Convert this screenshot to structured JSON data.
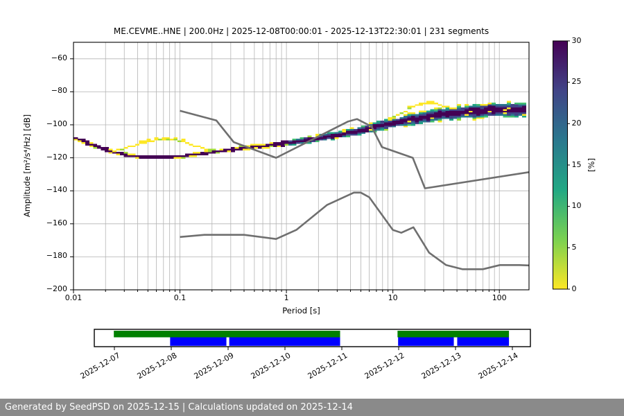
{
  "header": {
    "title": "ME.CEVME..HNE | 200.0Hz | 2025-12-08T00:00:01 - 2025-12-13T22:30:01 | 231 segments"
  },
  "footer": {
    "text": "Generated by SeedPSD on 2025-12-15 | Calculations updated on 2025-12-14"
  },
  "chart_data": {
    "type": "heatmap",
    "title": "ME.CEVME..HNE | 200.0Hz | 2025-12-08T00:00:01 - 2025-12-13T22:30:01 | 231 segments",
    "xlabel": "Period [s]",
    "ylabel": "Amplitude [m²/s⁴/Hz] [dB]",
    "xscale": "log",
    "xlim": [
      0.01,
      190
    ],
    "ylim": [
      -200,
      -50
    ],
    "grid": "x-major-minor, y-major",
    "x_ticks": {
      "values": [
        0.01,
        0.1,
        1,
        10,
        100
      ],
      "labels": [
        "0.01",
        "0.1",
        "1",
        "10",
        "100"
      ]
    },
    "y_ticks": {
      "values": [
        -60,
        -80,
        -100,
        -120,
        -140,
        -160,
        -180,
        -200
      ],
      "labels": [
        "−60",
        "−80",
        "−100",
        "−120",
        "−140",
        "−160",
        "−180",
        "−200"
      ]
    },
    "colorbar": {
      "label": "[%]",
      "min": 0,
      "max": 30,
      "tick_values": [
        0,
        5,
        10,
        15,
        20,
        25,
        30
      ],
      "tick_labels": [
        "0",
        "5",
        "10",
        "15",
        "20",
        "25",
        "30"
      ],
      "colormap": "viridis_r",
      "stops_bottom_to_top": [
        "#fde725",
        "#7ad151",
        "#22a884",
        "#2a788e",
        "#414487",
        "#440154"
      ]
    },
    "psd_distribution": {
      "comment": "probability histogram band: mode amplitude (dB) vs period (s), halfwidth = visible spread in dB",
      "mode_db": [
        [
          0.01,
          -107.8
        ],
        [
          0.016,
          -112.8
        ],
        [
          0.025,
          -117.3
        ],
        [
          0.04,
          -119.4
        ],
        [
          0.07,
          -119.6
        ],
        [
          0.1,
          -119.2
        ],
        [
          0.15,
          -117.8
        ],
        [
          0.22,
          -116.2
        ],
        [
          0.45,
          -113.6
        ],
        [
          1,
          -111.2
        ],
        [
          2.2,
          -107.8
        ],
        [
          4.5,
          -104.2
        ],
        [
          8,
          -100.2
        ],
        [
          15,
          -96.8
        ],
        [
          30,
          -93.6
        ],
        [
          60,
          -91.8
        ],
        [
          100,
          -91.0
        ],
        [
          180,
          -90.6
        ]
      ],
      "halfwidth_db": [
        [
          0.01,
          1.1
        ],
        [
          0.2,
          1.1
        ],
        [
          0.7,
          1.5
        ],
        [
          2,
          2.0
        ],
        [
          6,
          2.6
        ],
        [
          15,
          3.3
        ],
        [
          40,
          4.0
        ],
        [
          180,
          4.3
        ]
      ],
      "secondary_ridges_db": [
        [
          [
            0.021,
            -117.3
          ],
          [
            0.03,
            -114.2
          ],
          [
            0.045,
            -111.0
          ],
          [
            0.065,
            -109.0
          ],
          [
            0.08,
            -108.6
          ],
          [
            0.1,
            -109.6
          ],
          [
            0.13,
            -112.0
          ],
          [
            0.17,
            -114.6
          ],
          [
            0.21,
            -116.2
          ]
        ],
        [
          [
            9,
            -98.0
          ],
          [
            11,
            -94.5
          ],
          [
            14,
            -90.5
          ],
          [
            18,
            -87.6
          ],
          [
            22,
            -86.7
          ],
          [
            26,
            -87.6
          ],
          [
            31,
            -89.2
          ],
          [
            37,
            -90.2
          ],
          [
            40,
            -90.6
          ]
        ]
      ],
      "palette": {
        "p30": "#440154",
        "p22": "#414487",
        "p15": "#2a788e",
        "p10": "#22a884",
        "p6": "#44bf70",
        "p3": "#a0da39",
        "p0": "#fde725"
      }
    },
    "noise_models": {
      "color": "#6f6f6f",
      "nhnm_db": [
        [
          0.1,
          -91.5
        ],
        [
          0.22,
          -97.4
        ],
        [
          0.32,
          -110.5
        ],
        [
          0.8,
          -120.0
        ],
        [
          3.8,
          -98.0
        ],
        [
          4.6,
          -96.5
        ],
        [
          6.3,
          -101.0
        ],
        [
          7.9,
          -113.5
        ],
        [
          15.4,
          -120.0
        ],
        [
          20.0,
          -138.5
        ],
        [
          190,
          -128.7
        ]
      ],
      "nlnm_db": [
        [
          0.1,
          -168.0
        ],
        [
          0.17,
          -166.7
        ],
        [
          0.4,
          -166.7
        ],
        [
          0.8,
          -169.2
        ],
        [
          1.24,
          -163.7
        ],
        [
          2.4,
          -148.6
        ],
        [
          4.3,
          -141.1
        ],
        [
          5.0,
          -141.1
        ],
        [
          6.0,
          -143.9
        ],
        [
          10.0,
          -163.7
        ],
        [
          12.0,
          -165.4
        ],
        [
          15.6,
          -162.1
        ],
        [
          21.9,
          -177.5
        ],
        [
          31.6,
          -185.0
        ],
        [
          45.0,
          -187.5
        ],
        [
          70.0,
          -187.5
        ],
        [
          101.0,
          -185.0
        ],
        [
          154.0,
          -185.0
        ],
        [
          190.0,
          -185.2
        ]
      ]
    }
  },
  "timeline": {
    "tick_labels": [
      "2025-12-07",
      "2025-12-08",
      "2025-12-09",
      "2025-12-10",
      "2025-12-11",
      "2025-12-12",
      "2025-12-13",
      "2025-12-14"
    ],
    "box_span_days": [
      -0.354,
      7.317
    ],
    "coverage_segments": {
      "green_days": [
        [
          -0.01,
          3.97
        ],
        [
          4.98,
          6.94
        ]
      ],
      "blue_days": [
        [
          0.98,
          1.97
        ],
        [
          2.02,
          3.97
        ],
        [
          4.99,
          5.97
        ],
        [
          6.03,
          6.94
        ]
      ]
    },
    "colors": {
      "green": "#008000",
      "blue": "#0000ff"
    }
  }
}
